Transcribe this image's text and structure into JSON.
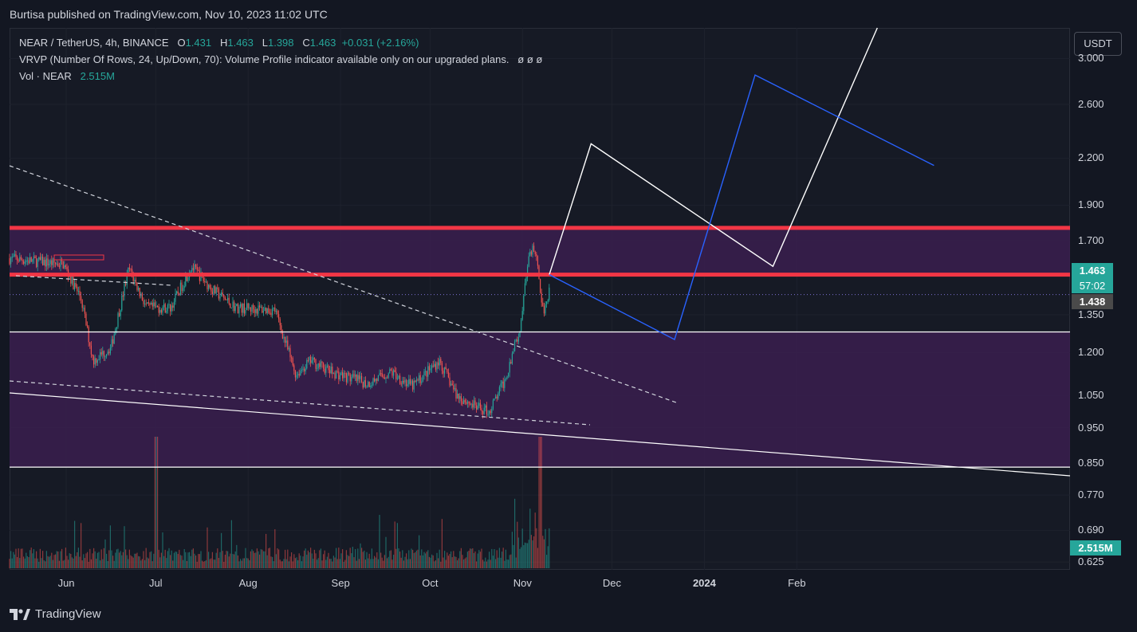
{
  "publisher_line": "Burtisa published on TradingView.com, Nov 10, 2023 11:02 UTC",
  "legend": {
    "symbol": "NEAR / TetherUS, 4h, BINANCE",
    "o_label": "O",
    "o_value": "1.431",
    "h_label": "H",
    "h_value": "1.463",
    "l_label": "L",
    "l_value": "1.398",
    "c_label": "C",
    "c_value": "1.463",
    "change": "+0.031 (+2.16%)",
    "vrvp": "VRVP (Number Of Rows, 24, Up/Down, 70): Volume Profile indicator available only on our upgraded plans.",
    "vrvp_icons": "ø  ø  ø",
    "vol_label": "Vol · NEAR",
    "vol_value": "2.515M"
  },
  "currency_button": "USDT",
  "price_tags": {
    "last": "1.463",
    "countdown": "57:02",
    "marker": "1.438",
    "volume": "2.515M"
  },
  "colors": {
    "background": "#131722",
    "up": "#26a69a",
    "down": "#ef5350",
    "resistance": "#f23645",
    "zone": "#3a1f4f",
    "projection_white": "#ffffff",
    "projection_blue": "#2962ff"
  },
  "footer_brand": "TradingView",
  "chart_data": {
    "type": "candlestick",
    "symbol": "NEAR / TetherUS",
    "timeframe": "4h",
    "y_scale": "log",
    "ylim": [
      0.61,
      3.3
    ],
    "y_ticks": [
      "3.000",
      "2.600",
      "2.200",
      "1.900",
      "1.700",
      "1.463",
      "1.350",
      "1.200",
      "1.050",
      "0.950",
      "0.850",
      "0.770",
      "0.690",
      "0.625"
    ],
    "x_ticks": [
      "Jun",
      "Jul",
      "Aug",
      "Sep",
      "Oct",
      "Nov",
      "Dec",
      "2024",
      "Feb"
    ],
    "price_path": [
      [
        "2023-05-13",
        1.61
      ],
      [
        "2023-05-31",
        1.58
      ],
      [
        "2023-06-06",
        1.42
      ],
      [
        "2023-06-10",
        1.17
      ],
      [
        "2023-06-16",
        1.22
      ],
      [
        "2023-06-22",
        1.56
      ],
      [
        "2023-06-28",
        1.38
      ],
      [
        "2023-07-06",
        1.38
      ],
      [
        "2023-07-13",
        1.57
      ],
      [
        "2023-07-20",
        1.46
      ],
      [
        "2023-07-28",
        1.38
      ],
      [
        "2023-08-10",
        1.37
      ],
      [
        "2023-08-17",
        1.12
      ],
      [
        "2023-08-22",
        1.17
      ],
      [
        "2023-08-29",
        1.13
      ],
      [
        "2023-09-10",
        1.09
      ],
      [
        "2023-09-18",
        1.13
      ],
      [
        "2023-09-25",
        1.08
      ],
      [
        "2023-10-04",
        1.17
      ],
      [
        "2023-10-10",
        1.05
      ],
      [
        "2023-10-17",
        1.01
      ],
      [
        "2023-10-21",
        1.0
      ],
      [
        "2023-10-26",
        1.1
      ],
      [
        "2023-10-31",
        1.29
      ],
      [
        "2023-11-03",
        1.6
      ],
      [
        "2023-11-05",
        1.67
      ],
      [
        "2023-11-07",
        1.46
      ],
      [
        "2023-11-08",
        1.36
      ],
      [
        "2023-11-10",
        1.463
      ]
    ],
    "volume_series": "NEAR",
    "last_volume": "2.515M",
    "levels": [
      {
        "kind": "resistance",
        "price": 1.77
      },
      {
        "kind": "resistance",
        "price": 1.53
      },
      {
        "kind": "support",
        "price": 1.28
      },
      {
        "kind": "support",
        "price": 0.84
      }
    ],
    "zones": [
      {
        "from": 1.53,
        "to": 1.77
      },
      {
        "from": 0.84,
        "to": 1.28
      }
    ],
    "projection_white": [
      [
        "2023-11-10",
        1.53
      ],
      [
        "2023-11-24",
        2.3
      ],
      [
        "2024-01-24",
        1.57
      ],
      [
        "2024-02-28",
        3.3
      ]
    ],
    "projection_blue": [
      [
        "2023-11-10",
        1.53
      ],
      [
        "2023-12-22",
        1.25
      ],
      [
        "2024-01-18",
        2.85
      ],
      [
        "2024-03-18",
        2.15
      ]
    ]
  }
}
